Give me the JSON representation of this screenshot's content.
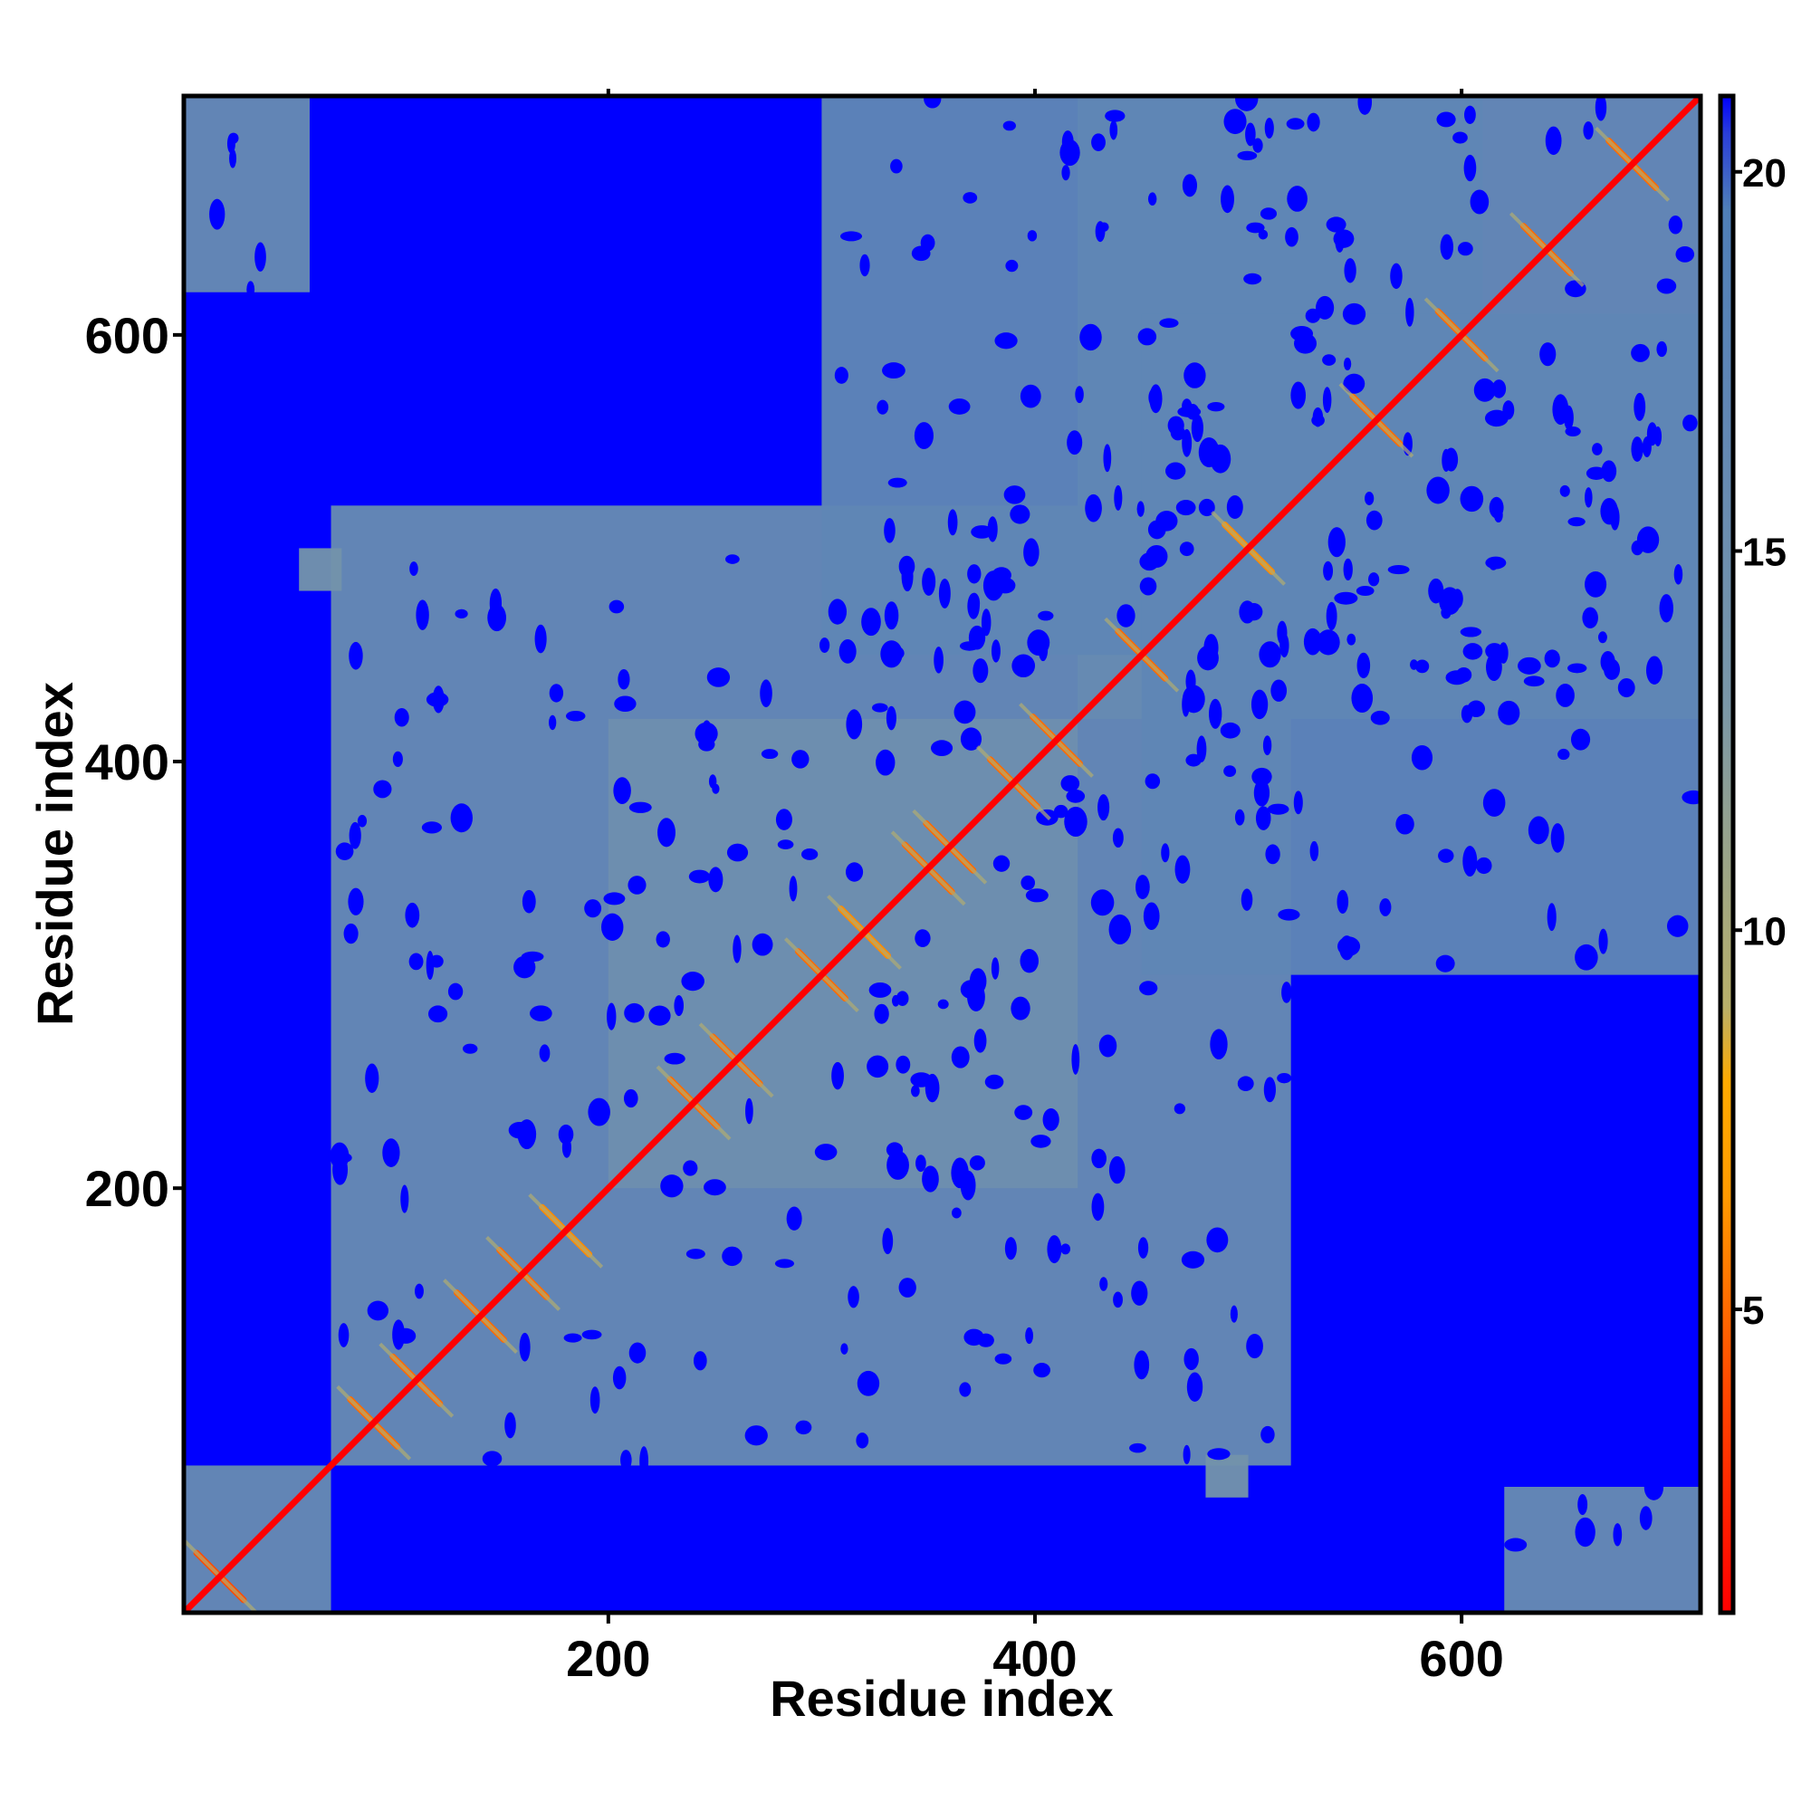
{
  "chart_data": {
    "type": "heatmap",
    "title": "",
    "xlabel": "Residue index",
    "ylabel": "Residue index",
    "xlim": [
      1,
      712
    ],
    "ylim": [
      1,
      712
    ],
    "x_ticks": [
      200,
      400,
      600
    ],
    "y_ticks": [
      200,
      400,
      600
    ],
    "x_tick_labels": [
      "200",
      "400",
      "600"
    ],
    "y_tick_labels": [
      "200",
      "400",
      "600"
    ],
    "grid": false,
    "matrix_note": "symmetric residue-residue distance map; values below describe visible structure",
    "colorbar": {
      "range": [
        1,
        21
      ],
      "ticks": [
        5,
        10,
        15,
        20
      ],
      "tick_labels": [
        "5",
        "10",
        "15",
        "20"
      ],
      "stops": [
        {
          "value": 1,
          "color": "#ff0000"
        },
        {
          "value": 4,
          "color": "#ff4a00"
        },
        {
          "value": 6.5,
          "color": "#ff9a00"
        },
        {
          "value": 8,
          "color": "#ffaa00"
        },
        {
          "value": 9,
          "color": "#b9b06a"
        },
        {
          "value": 13,
          "color": "#7a97a8"
        },
        {
          "value": 17,
          "color": "#5f86b5"
        },
        {
          "value": 19.5,
          "color": "#4f7fb8"
        },
        {
          "value": 20.5,
          "color": "#2a3fd9"
        },
        {
          "value": 21,
          "color": "#0000ff"
        }
      ]
    },
    "background_value": 21,
    "diagonal_value": 1,
    "close_regions": [
      {
        "x": [
          70,
          520
        ],
        "y": [
          70,
          520
        ],
        "value": 16
      },
      {
        "x": [
          200,
          420
        ],
        "y": [
          200,
          420
        ],
        "value": 15
      },
      {
        "x": [
          420,
          712
        ],
        "y": [
          420,
          712
        ],
        "value": 16
      },
      {
        "x": [
          300,
          610
        ],
        "y": [
          450,
          712
        ],
        "value": 17
      },
      {
        "x": [
          450,
          712
        ],
        "y": [
          300,
          610
        ],
        "value": 17
      },
      {
        "x": [
          1,
          60
        ],
        "y": [
          620,
          712
        ],
        "value": 16
      },
      {
        "x": [
          620,
          712
        ],
        "y": [
          1,
          60
        ],
        "value": 16
      },
      {
        "x": [
          1,
          70
        ],
        "y": [
          1,
          70
        ],
        "value": 16
      },
      {
        "x": [
          55,
          75
        ],
        "y": [
          480,
          500
        ],
        "value": 14
      },
      {
        "x": [
          480,
          500
        ],
        "y": [
          55,
          75
        ],
        "value": 14
      }
    ],
    "contact_streaks": [
      {
        "center": [
          18,
          18
        ],
        "value": 4
      },
      {
        "center": [
          90,
          90
        ],
        "value": 5
      },
      {
        "center": [
          110,
          110
        ],
        "value": 5
      },
      {
        "center": [
          140,
          140
        ],
        "value": 5
      },
      {
        "center": [
          160,
          160
        ],
        "value": 5
      },
      {
        "center": [
          180,
          180
        ],
        "value": 6
      },
      {
        "center": [
          240,
          240
        ],
        "value": 5
      },
      {
        "center": [
          260,
          260
        ],
        "value": 5
      },
      {
        "center": [
          300,
          300
        ],
        "value": 5
      },
      {
        "center": [
          320,
          320
        ],
        "value": 6
      },
      {
        "center": [
          350,
          350
        ],
        "value": 5
      },
      {
        "center": [
          360,
          360
        ],
        "value": 5
      },
      {
        "center": [
          390,
          390
        ],
        "value": 5
      },
      {
        "center": [
          410,
          410
        ],
        "value": 5
      },
      {
        "center": [
          450,
          450
        ],
        "value": 5
      },
      {
        "center": [
          500,
          500
        ],
        "value": 6
      },
      {
        "center": [
          560,
          560
        ],
        "value": 5
      },
      {
        "center": [
          600,
          600
        ],
        "value": 5
      },
      {
        "center": [
          640,
          640
        ],
        "value": 5
      },
      {
        "center": [
          680,
          680
        ],
        "value": 5
      }
    ]
  }
}
